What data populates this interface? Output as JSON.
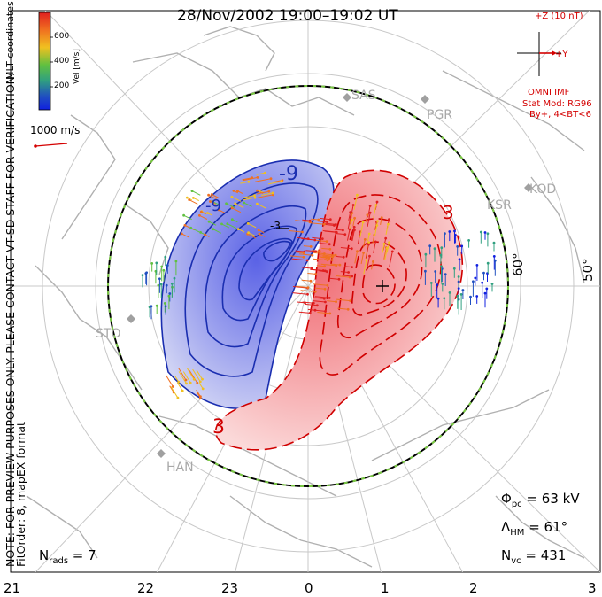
{
  "title": "28/Nov/2002 19:00–19:02 UT",
  "side_note": "NOTE: FOR PREVIEW PURPOSES ONLY. PLEASE CONTACT VT-SD STAFF FOR VERIFICATION.",
  "side_fit": "FitOrder: 8, mapEX format",
  "coords_label": "MLT coordinates",
  "colorbar": {
    "label": "Vel [m/s]",
    "ticks": [
      "600",
      "400",
      "200"
    ],
    "colors": [
      "#e02020",
      "#f07020",
      "#f0c020",
      "#60c040",
      "#30a080",
      "#2050c0",
      "#1020e0"
    ]
  },
  "scale_label": "1000 m/s",
  "imf": {
    "bz_label": "+Z (10 nT)",
    "by_label": "+Y",
    "source": "OMNI IMF",
    "model": "Stat Mod: RG96",
    "condition": "By+, 4<BT<6"
  },
  "stats": {
    "phi_pc": "63 kV",
    "lambda_hm": "61°",
    "n_vc": "431",
    "n_rads": "7"
  },
  "mlt_labels": [
    "21",
    "22",
    "23",
    "0",
    "1",
    "2",
    "3"
  ],
  "lat_labels": [
    "60°",
    "50°"
  ],
  "sites": [
    "SAS",
    "PGR",
    "KOD",
    "KSR",
    "STO",
    "HAN"
  ],
  "contour_labels": [
    "-9",
    "-9",
    "-3",
    "3",
    "3"
  ],
  "chart_data": {
    "type": "other",
    "title": "28/Nov/2002 19:00–19:02 UT",
    "coordinates": "MLT",
    "cross_polar_cap_potential_kV": 63,
    "heppner_maynard_boundary_deg": 61,
    "vector_count": 431,
    "radar_count": 7,
    "velocity_scale_m_s": [
      0,
      700
    ],
    "contour_potentials_kV": [
      -9,
      -3,
      3
    ]
  }
}
